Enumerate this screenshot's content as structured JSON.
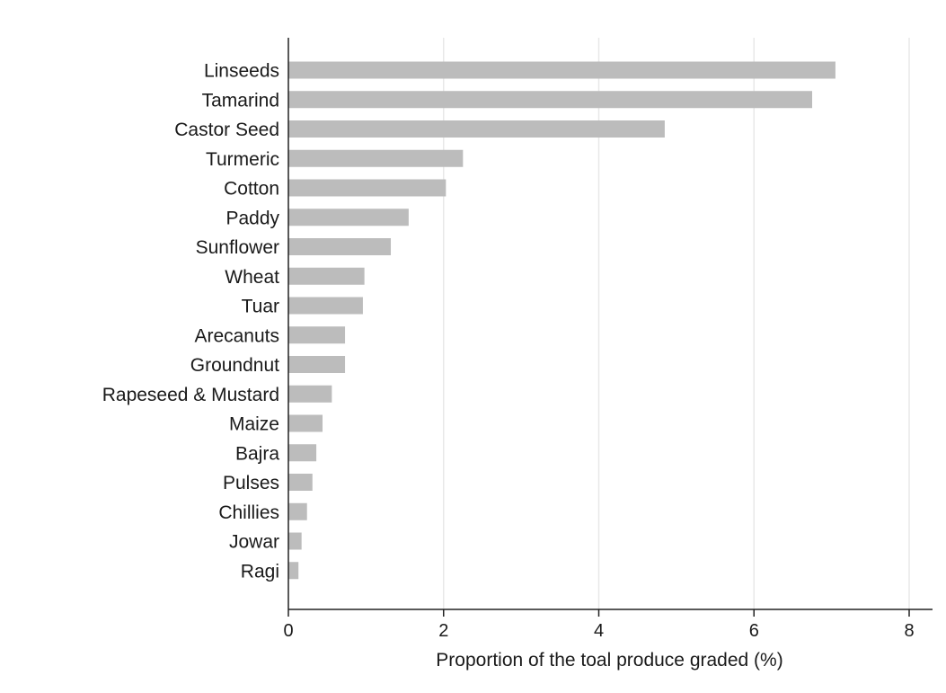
{
  "chart_data": {
    "type": "bar",
    "orientation": "horizontal",
    "categories": [
      "Linseeds",
      "Tamarind",
      "Castor Seed",
      "Turmeric",
      "Cotton",
      "Paddy",
      "Sunflower",
      "Wheat",
      "Tuar",
      "Arecanuts",
      "Groundnut",
      "Rapeseed & Mustard",
      "Maize",
      "Bajra",
      "Pulses",
      "Chillies",
      "Jowar",
      "Ragi"
    ],
    "values": [
      7.05,
      6.75,
      4.85,
      2.25,
      2.03,
      1.55,
      1.32,
      0.98,
      0.96,
      0.73,
      0.73,
      0.56,
      0.44,
      0.36,
      0.31,
      0.24,
      0.17,
      0.13
    ],
    "title": "",
    "xlabel": "Proportion of the toal produce graded (%)",
    "ylabel": "",
    "xlim": [
      0,
      8
    ],
    "xticks": [
      "0",
      "2",
      "4",
      "6",
      "8"
    ],
    "grid": true,
    "bar_color": "#bcbcbc",
    "grid_color": "#e8e8e8",
    "axis_color": "#222222"
  }
}
